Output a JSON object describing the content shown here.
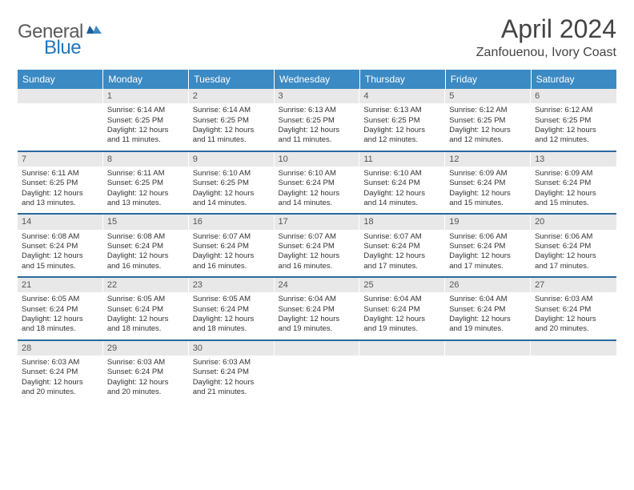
{
  "logo": {
    "general": "General",
    "blue": "Blue"
  },
  "title": "April 2024",
  "location": "Zanfouenou, Ivory Coast",
  "colors": {
    "header_bg": "#3b8ac4",
    "week_border": "#2a6aa0",
    "daynum_bg": "#e8e8e8",
    "text": "#333333",
    "logo_gray": "#5a5a5a",
    "logo_blue": "#2277bb"
  },
  "day_headers": [
    "Sunday",
    "Monday",
    "Tuesday",
    "Wednesday",
    "Thursday",
    "Friday",
    "Saturday"
  ],
  "weeks": [
    [
      {
        "n": "",
        "empty": true
      },
      {
        "n": "1",
        "sr": "Sunrise: 6:14 AM",
        "ss": "Sunset: 6:25 PM",
        "d1": "Daylight: 12 hours",
        "d2": "and 11 minutes."
      },
      {
        "n": "2",
        "sr": "Sunrise: 6:14 AM",
        "ss": "Sunset: 6:25 PM",
        "d1": "Daylight: 12 hours",
        "d2": "and 11 minutes."
      },
      {
        "n": "3",
        "sr": "Sunrise: 6:13 AM",
        "ss": "Sunset: 6:25 PM",
        "d1": "Daylight: 12 hours",
        "d2": "and 11 minutes."
      },
      {
        "n": "4",
        "sr": "Sunrise: 6:13 AM",
        "ss": "Sunset: 6:25 PM",
        "d1": "Daylight: 12 hours",
        "d2": "and 12 minutes."
      },
      {
        "n": "5",
        "sr": "Sunrise: 6:12 AM",
        "ss": "Sunset: 6:25 PM",
        "d1": "Daylight: 12 hours",
        "d2": "and 12 minutes."
      },
      {
        "n": "6",
        "sr": "Sunrise: 6:12 AM",
        "ss": "Sunset: 6:25 PM",
        "d1": "Daylight: 12 hours",
        "d2": "and 12 minutes."
      }
    ],
    [
      {
        "n": "7",
        "sr": "Sunrise: 6:11 AM",
        "ss": "Sunset: 6:25 PM",
        "d1": "Daylight: 12 hours",
        "d2": "and 13 minutes."
      },
      {
        "n": "8",
        "sr": "Sunrise: 6:11 AM",
        "ss": "Sunset: 6:25 PM",
        "d1": "Daylight: 12 hours",
        "d2": "and 13 minutes."
      },
      {
        "n": "9",
        "sr": "Sunrise: 6:10 AM",
        "ss": "Sunset: 6:25 PM",
        "d1": "Daylight: 12 hours",
        "d2": "and 14 minutes."
      },
      {
        "n": "10",
        "sr": "Sunrise: 6:10 AM",
        "ss": "Sunset: 6:24 PM",
        "d1": "Daylight: 12 hours",
        "d2": "and 14 minutes."
      },
      {
        "n": "11",
        "sr": "Sunrise: 6:10 AM",
        "ss": "Sunset: 6:24 PM",
        "d1": "Daylight: 12 hours",
        "d2": "and 14 minutes."
      },
      {
        "n": "12",
        "sr": "Sunrise: 6:09 AM",
        "ss": "Sunset: 6:24 PM",
        "d1": "Daylight: 12 hours",
        "d2": "and 15 minutes."
      },
      {
        "n": "13",
        "sr": "Sunrise: 6:09 AM",
        "ss": "Sunset: 6:24 PM",
        "d1": "Daylight: 12 hours",
        "d2": "and 15 minutes."
      }
    ],
    [
      {
        "n": "14",
        "sr": "Sunrise: 6:08 AM",
        "ss": "Sunset: 6:24 PM",
        "d1": "Daylight: 12 hours",
        "d2": "and 15 minutes."
      },
      {
        "n": "15",
        "sr": "Sunrise: 6:08 AM",
        "ss": "Sunset: 6:24 PM",
        "d1": "Daylight: 12 hours",
        "d2": "and 16 minutes."
      },
      {
        "n": "16",
        "sr": "Sunrise: 6:07 AM",
        "ss": "Sunset: 6:24 PM",
        "d1": "Daylight: 12 hours",
        "d2": "and 16 minutes."
      },
      {
        "n": "17",
        "sr": "Sunrise: 6:07 AM",
        "ss": "Sunset: 6:24 PM",
        "d1": "Daylight: 12 hours",
        "d2": "and 16 minutes."
      },
      {
        "n": "18",
        "sr": "Sunrise: 6:07 AM",
        "ss": "Sunset: 6:24 PM",
        "d1": "Daylight: 12 hours",
        "d2": "and 17 minutes."
      },
      {
        "n": "19",
        "sr": "Sunrise: 6:06 AM",
        "ss": "Sunset: 6:24 PM",
        "d1": "Daylight: 12 hours",
        "d2": "and 17 minutes."
      },
      {
        "n": "20",
        "sr": "Sunrise: 6:06 AM",
        "ss": "Sunset: 6:24 PM",
        "d1": "Daylight: 12 hours",
        "d2": "and 17 minutes."
      }
    ],
    [
      {
        "n": "21",
        "sr": "Sunrise: 6:05 AM",
        "ss": "Sunset: 6:24 PM",
        "d1": "Daylight: 12 hours",
        "d2": "and 18 minutes."
      },
      {
        "n": "22",
        "sr": "Sunrise: 6:05 AM",
        "ss": "Sunset: 6:24 PM",
        "d1": "Daylight: 12 hours",
        "d2": "and 18 minutes."
      },
      {
        "n": "23",
        "sr": "Sunrise: 6:05 AM",
        "ss": "Sunset: 6:24 PM",
        "d1": "Daylight: 12 hours",
        "d2": "and 18 minutes."
      },
      {
        "n": "24",
        "sr": "Sunrise: 6:04 AM",
        "ss": "Sunset: 6:24 PM",
        "d1": "Daylight: 12 hours",
        "d2": "and 19 minutes."
      },
      {
        "n": "25",
        "sr": "Sunrise: 6:04 AM",
        "ss": "Sunset: 6:24 PM",
        "d1": "Daylight: 12 hours",
        "d2": "and 19 minutes."
      },
      {
        "n": "26",
        "sr": "Sunrise: 6:04 AM",
        "ss": "Sunset: 6:24 PM",
        "d1": "Daylight: 12 hours",
        "d2": "and 19 minutes."
      },
      {
        "n": "27",
        "sr": "Sunrise: 6:03 AM",
        "ss": "Sunset: 6:24 PM",
        "d1": "Daylight: 12 hours",
        "d2": "and 20 minutes."
      }
    ],
    [
      {
        "n": "28",
        "sr": "Sunrise: 6:03 AM",
        "ss": "Sunset: 6:24 PM",
        "d1": "Daylight: 12 hours",
        "d2": "and 20 minutes."
      },
      {
        "n": "29",
        "sr": "Sunrise: 6:03 AM",
        "ss": "Sunset: 6:24 PM",
        "d1": "Daylight: 12 hours",
        "d2": "and 20 minutes."
      },
      {
        "n": "30",
        "sr": "Sunrise: 6:03 AM",
        "ss": "Sunset: 6:24 PM",
        "d1": "Daylight: 12 hours",
        "d2": "and 21 minutes."
      },
      {
        "n": "",
        "empty": true
      },
      {
        "n": "",
        "empty": true
      },
      {
        "n": "",
        "empty": true
      },
      {
        "n": "",
        "empty": true
      }
    ]
  ]
}
